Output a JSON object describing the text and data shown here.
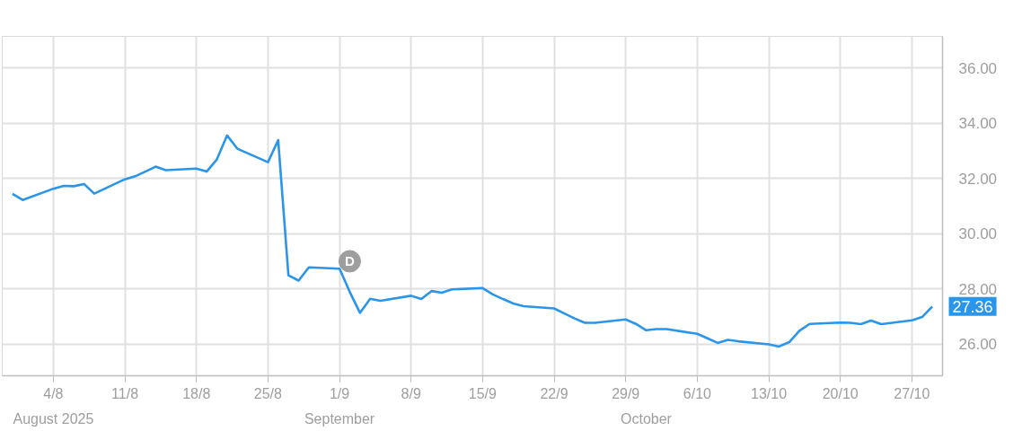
{
  "chart_data": {
    "type": "line",
    "x": [
      "2025-07-31",
      "2025-08-01",
      "2025-08-04",
      "2025-08-05",
      "2025-08-06",
      "2025-08-07",
      "2025-08-08",
      "2025-08-11",
      "2025-08-12",
      "2025-08-13",
      "2025-08-14",
      "2025-08-15",
      "2025-08-18",
      "2025-08-19",
      "2025-08-20",
      "2025-08-21",
      "2025-08-22",
      "2025-08-25",
      "2025-08-26",
      "2025-08-27",
      "2025-08-28",
      "2025-08-29",
      "2025-09-01",
      "2025-09-02",
      "2025-09-03",
      "2025-09-04",
      "2025-09-05",
      "2025-09-08",
      "2025-09-09",
      "2025-09-10",
      "2025-09-11",
      "2025-09-12",
      "2025-09-15",
      "2025-09-16",
      "2025-09-17",
      "2025-09-18",
      "2025-09-19",
      "2025-09-22",
      "2025-09-23",
      "2025-09-24",
      "2025-09-25",
      "2025-09-26",
      "2025-09-29",
      "2025-09-30",
      "2025-10-01",
      "2025-10-02",
      "2025-10-03",
      "2025-10-06",
      "2025-10-07",
      "2025-10-08",
      "2025-10-09",
      "2025-10-10",
      "2025-10-13",
      "2025-10-14",
      "2025-10-15",
      "2025-10-16",
      "2025-10-17",
      "2025-10-20",
      "2025-10-21",
      "2025-10-22",
      "2025-10-23",
      "2025-10-24",
      "2025-10-27",
      "2025-10-28",
      "2025-10-29"
    ],
    "series": [
      {
        "color": "#2b95e9",
        "values": [
          31.44,
          31.22,
          31.63,
          31.73,
          31.72,
          31.8,
          31.45,
          31.97,
          32.08,
          32.25,
          32.43,
          32.3,
          32.36,
          32.25,
          32.69,
          33.56,
          33.08,
          32.59,
          33.39,
          28.49,
          28.3,
          28.78,
          28.73,
          27.89,
          27.13,
          27.64,
          27.57,
          27.75,
          27.63,
          27.92,
          27.86,
          27.98,
          28.03,
          27.8,
          27.63,
          27.47,
          27.37,
          27.29,
          27.11,
          26.93,
          26.77,
          26.77,
          26.89,
          26.73,
          26.5,
          26.54,
          26.54,
          26.37,
          26.21,
          26.04,
          26.15,
          26.1,
          25.99,
          25.91,
          26.07,
          26.48,
          26.73,
          26.78,
          26.77,
          26.72,
          26.85,
          26.72,
          26.86,
          26.98,
          27.36
        ],
        "value_labels": [
          null,
          null,
          null,
          null,
          null,
          null,
          null,
          null,
          null,
          null,
          null,
          null,
          null,
          null,
          null,
          null,
          null,
          null,
          null,
          null,
          null,
          null,
          null,
          null,
          null,
          null,
          null,
          null,
          null,
          null,
          null,
          null,
          null,
          null,
          null,
          null,
          null,
          null,
          null,
          null,
          null,
          null,
          null,
          null,
          null,
          null,
          null,
          null,
          null,
          null,
          null,
          null,
          null,
          null,
          null,
          null,
          null,
          null,
          null,
          null,
          null,
          null,
          null,
          null,
          "27.36"
        ]
      }
    ],
    "xlim": [
      "2025-07-30",
      "2025-10-30"
    ],
    "xticks": [
      {
        "value": "2025-08-04",
        "label": "4/8"
      },
      {
        "value": "2025-08-11",
        "label": "11/8"
      },
      {
        "value": "2025-08-18",
        "label": "18/8"
      },
      {
        "value": "2025-08-25",
        "label": "25/8"
      },
      {
        "value": "2025-09-01",
        "label": "1/9"
      },
      {
        "value": "2025-09-08",
        "label": "8/9"
      },
      {
        "value": "2025-09-15",
        "label": "15/9"
      },
      {
        "value": "2025-09-22",
        "label": "22/9"
      },
      {
        "value": "2025-09-29",
        "label": "29/9"
      },
      {
        "value": "2025-10-06",
        "label": "6/10"
      },
      {
        "value": "2025-10-13",
        "label": "13/10"
      },
      {
        "value": "2025-10-20",
        "label": "20/10"
      },
      {
        "value": "2025-10-27",
        "label": "27/10"
      }
    ],
    "x2lim": [
      "2025-07-30",
      "2025-10-30"
    ],
    "x2ticks": [
      {
        "value": "2025-08-04",
        "label": "August 2025"
      },
      {
        "value": "2025-09-01",
        "label": "September"
      },
      {
        "value": "2025-10-01",
        "label": "October"
      }
    ],
    "ylim": [
      24.85,
      37.15
    ],
    "yticks": [
      {
        "value": 26,
        "label": "26.00"
      },
      {
        "value": 28,
        "label": "28.00"
      },
      {
        "value": 30,
        "label": "30.00"
      },
      {
        "value": 32,
        "label": "32.00"
      },
      {
        "value": 34,
        "label": "34.00"
      },
      {
        "value": 36,
        "label": "36.00"
      }
    ],
    "grid": true,
    "annotations": [
      {
        "text": "D",
        "x": "2025-09-02",
        "y": 29.0
      }
    ]
  }
}
